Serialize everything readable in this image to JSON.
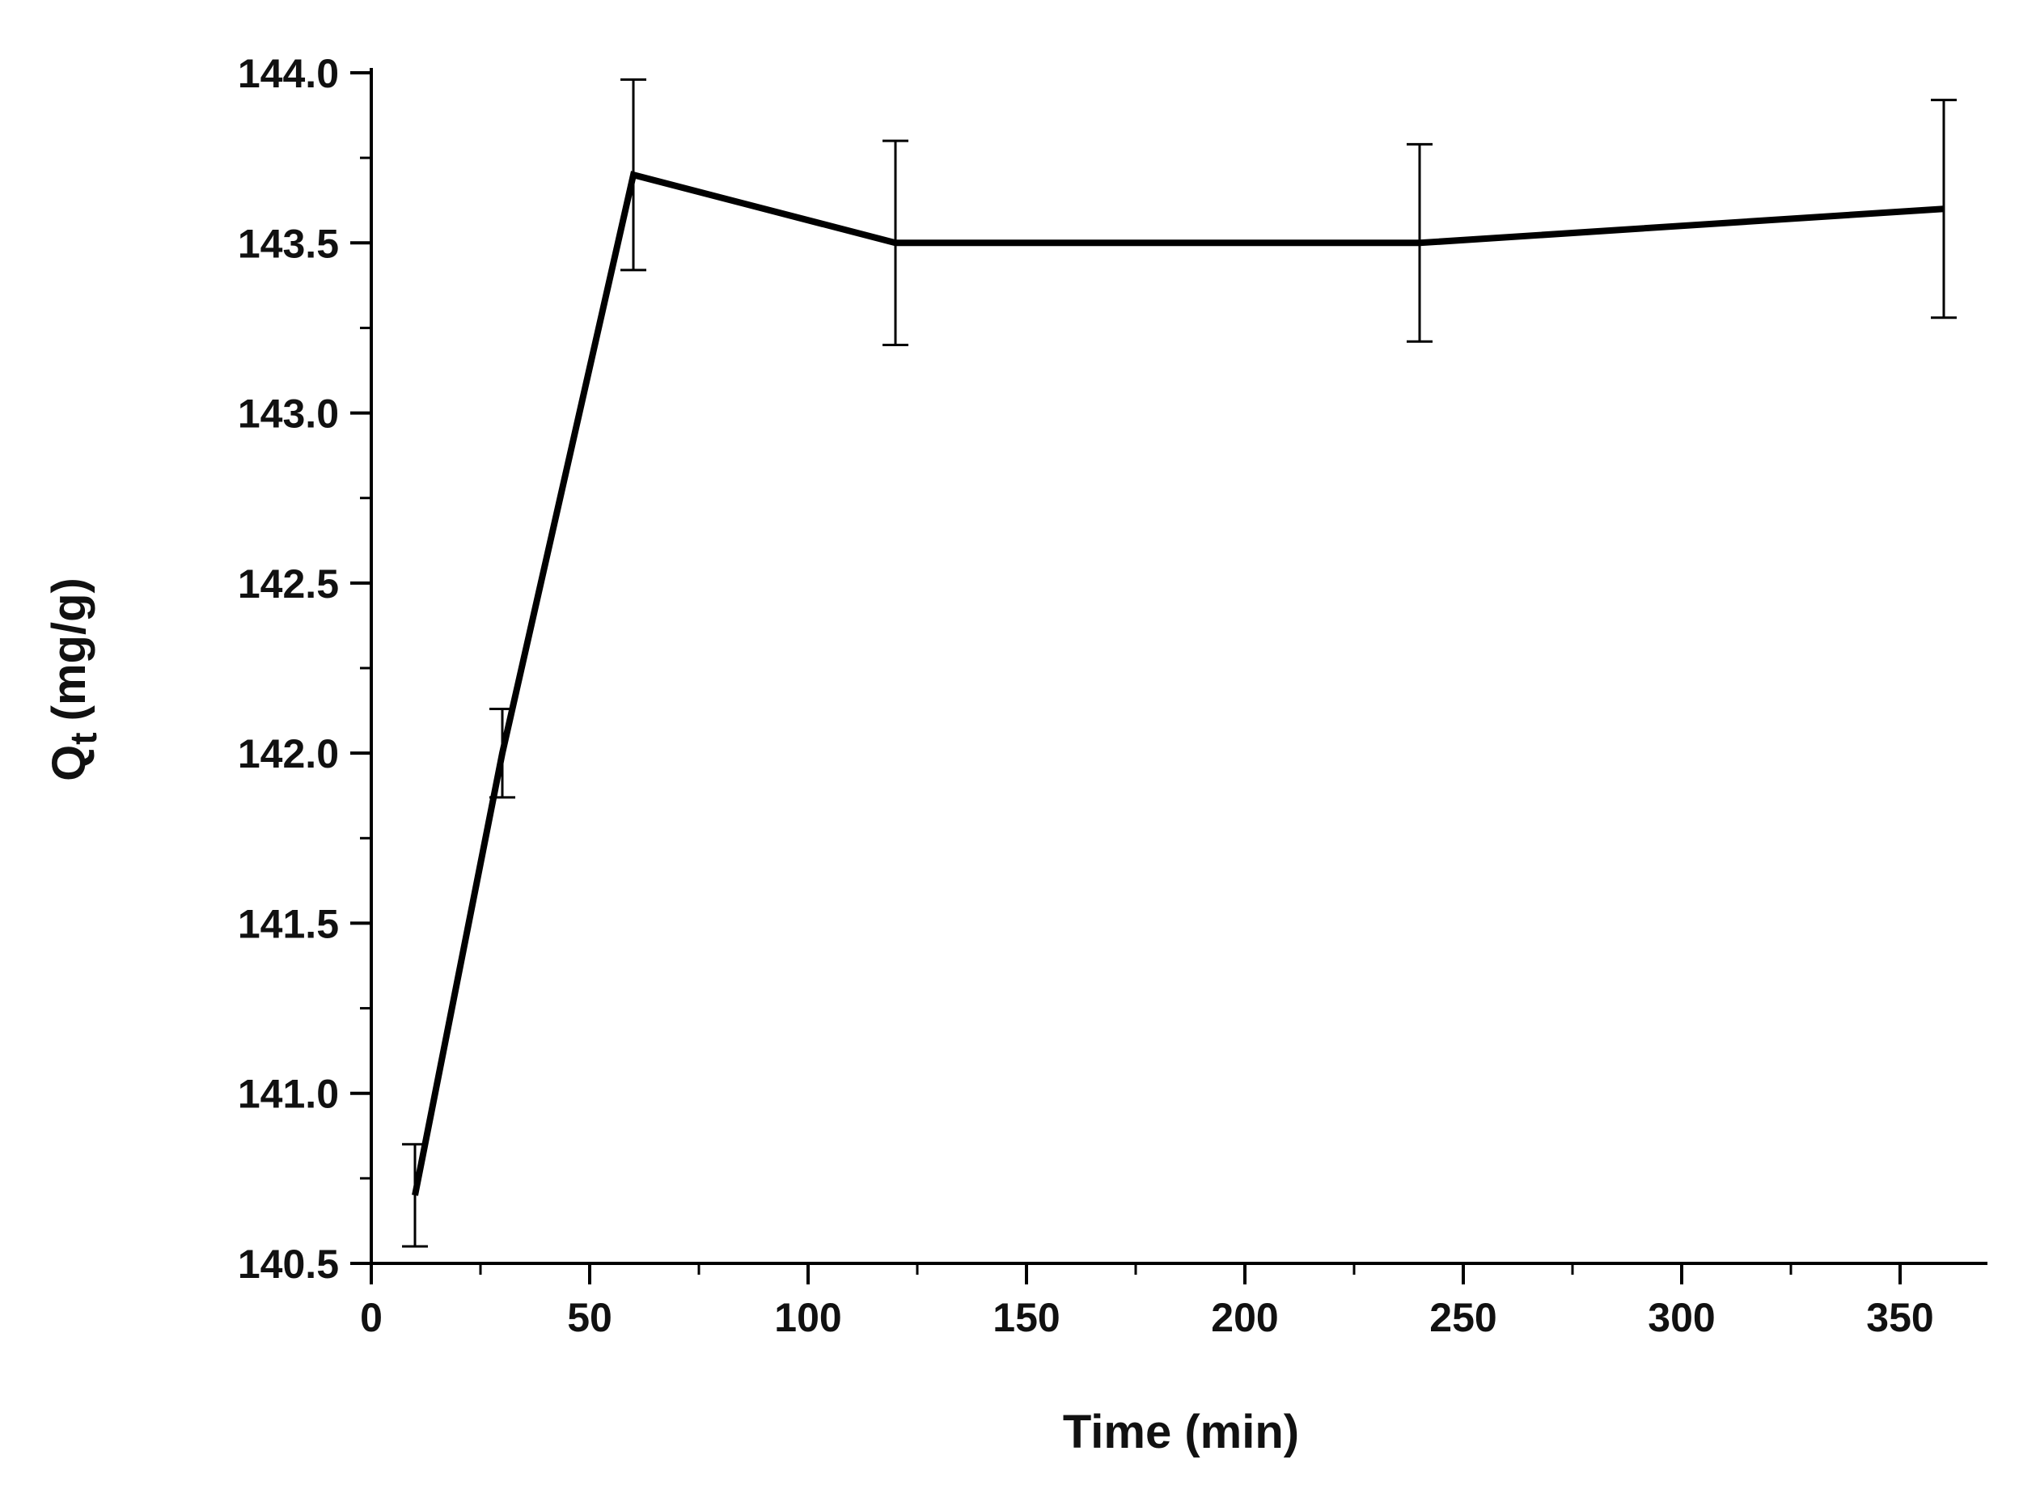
{
  "chart_data": {
    "type": "line",
    "title": "",
    "xlabel": "Time (min)",
    "ylabel": {
      "main": "Q",
      "subscript": "t",
      "unit": "(mg/g)"
    },
    "xlim": [
      0,
      370
    ],
    "ylim": [
      140.5,
      144.0
    ],
    "x_ticks": [
      0,
      50,
      100,
      150,
      200,
      250,
      300,
      350
    ],
    "x_tick_labels": [
      "0",
      "50",
      "100",
      "150",
      "200",
      "250",
      "300",
      "350"
    ],
    "y_ticks": [
      140.5,
      141.0,
      141.5,
      142.0,
      142.5,
      143.0,
      143.5,
      144.0
    ],
    "y_tick_labels": [
      "140.5",
      "141.0",
      "141.5",
      "142.0",
      "142.5",
      "143.0",
      "143.5",
      "144.0"
    ],
    "grid": false,
    "line_color": "#000000",
    "series": [
      {
        "x": [
          10,
          30,
          60,
          120,
          240,
          360
        ],
        "y": [
          140.7,
          142.0,
          143.7,
          143.5,
          143.5,
          143.6
        ],
        "error": [
          0.15,
          0.13,
          0.28,
          0.3,
          0.29,
          0.32
        ]
      }
    ]
  }
}
